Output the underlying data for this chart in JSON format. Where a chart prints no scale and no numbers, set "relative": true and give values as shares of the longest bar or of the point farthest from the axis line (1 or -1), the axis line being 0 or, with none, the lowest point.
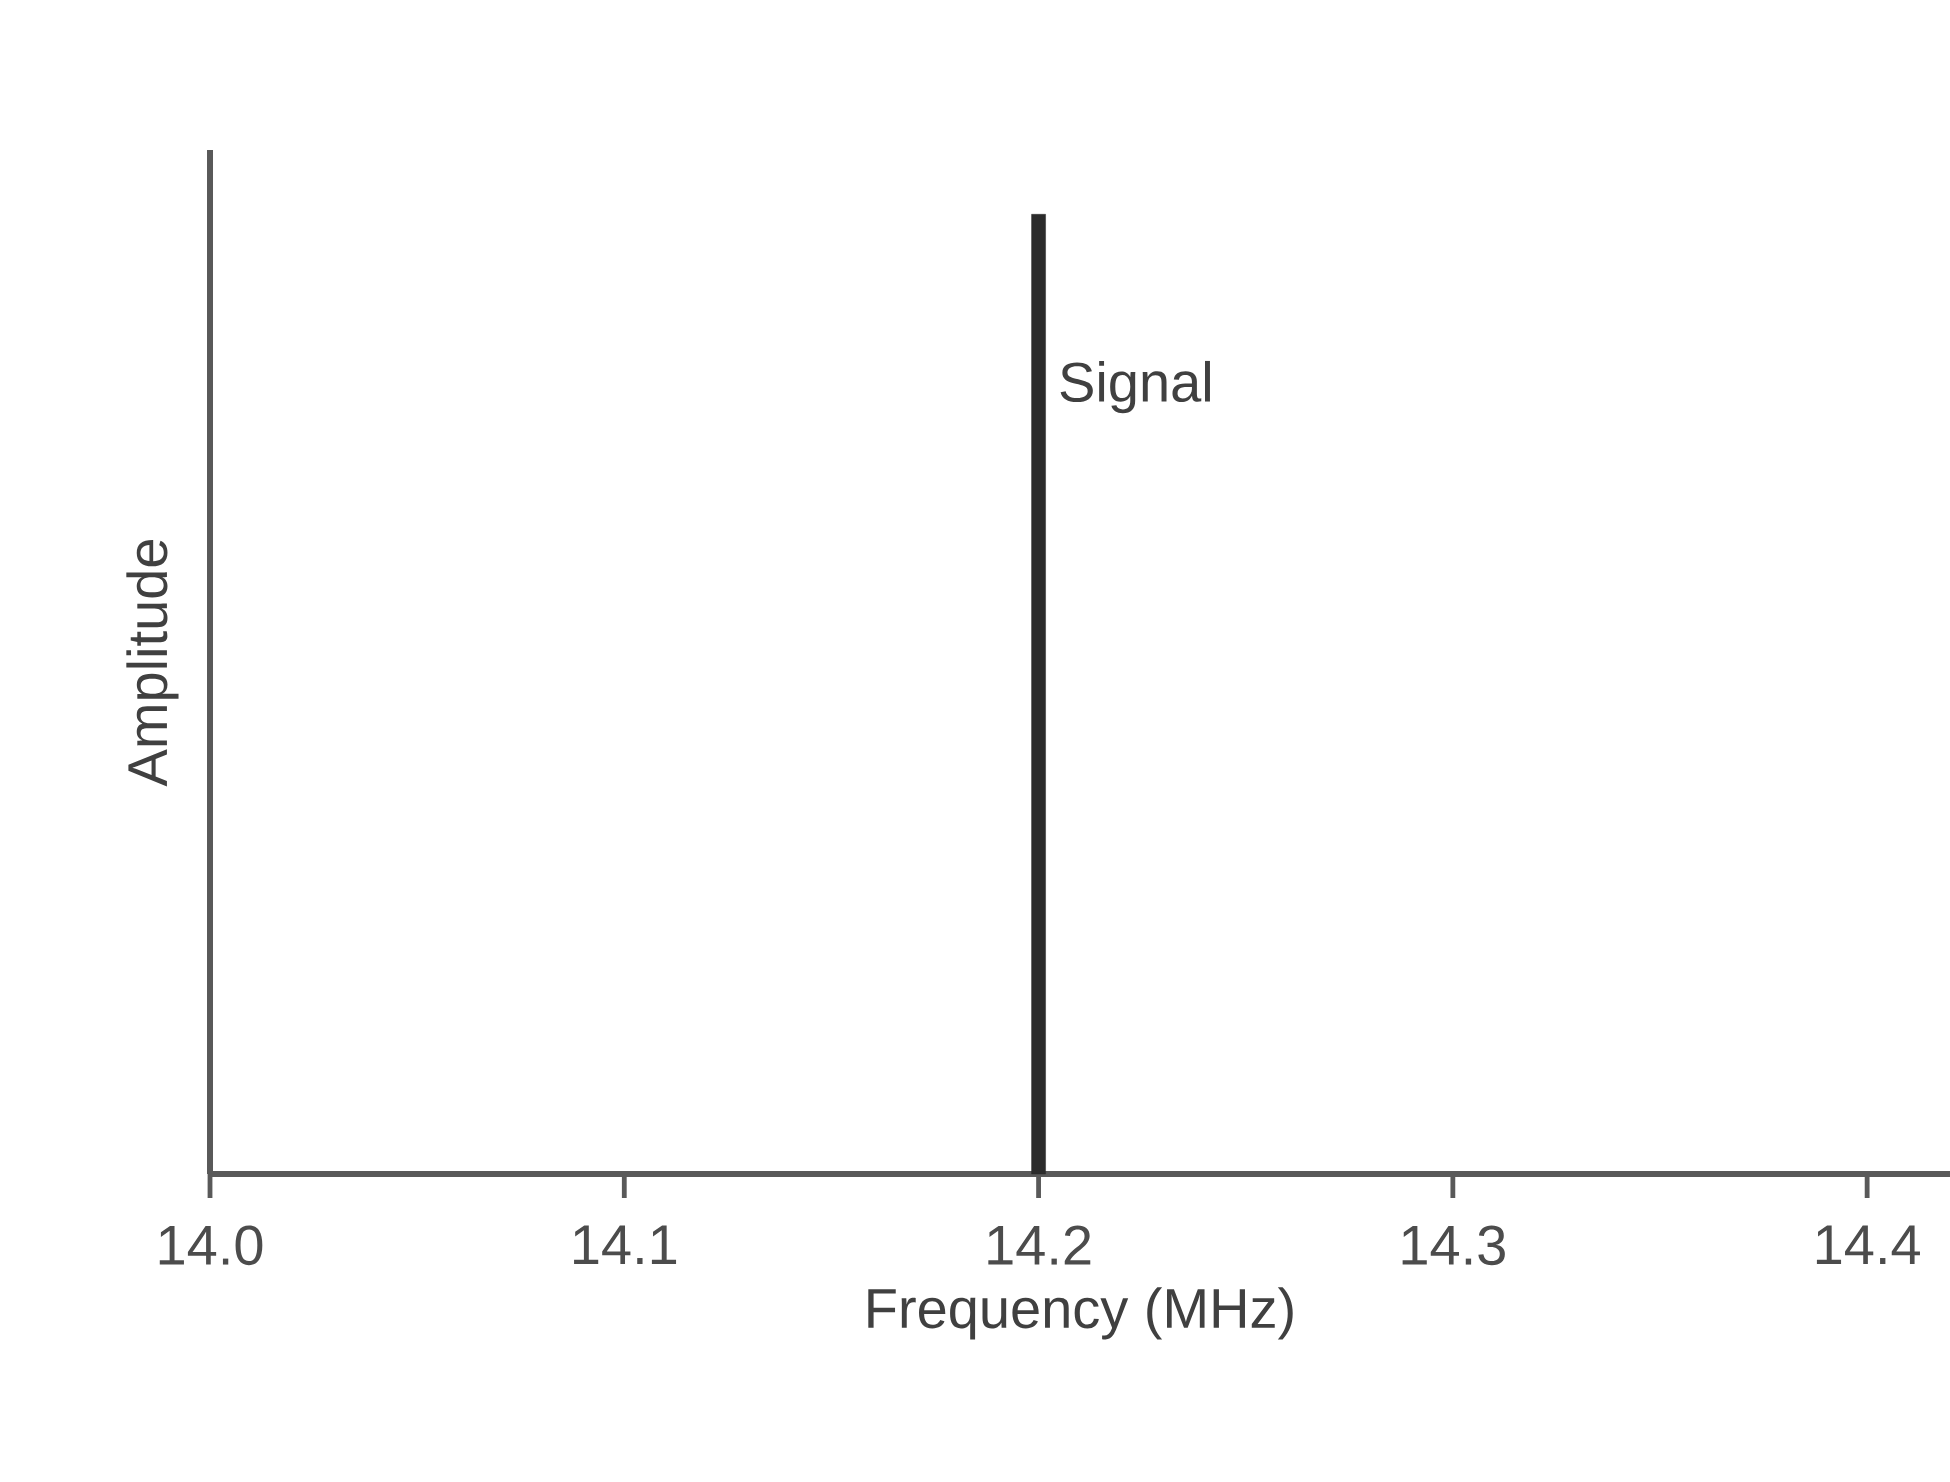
{
  "chart_data": {
    "type": "bar",
    "relative": true,
    "xlabel": "Frequency (MHz)",
    "ylabel": "Amplitude",
    "x": [
      14.2
    ],
    "values": [
      1
    ],
    "color": "#2b2b2b",
    "xlim": [
      14.0,
      14.42
    ],
    "xticks": [
      {
        "value": 14.0,
        "label": "14.0"
      },
      14.1,
      14.2,
      14.3,
      14.4
    ],
    "annotations": [
      {
        "text": "Signal",
        "x": 14.2,
        "y": 0.82
      }
    ]
  }
}
